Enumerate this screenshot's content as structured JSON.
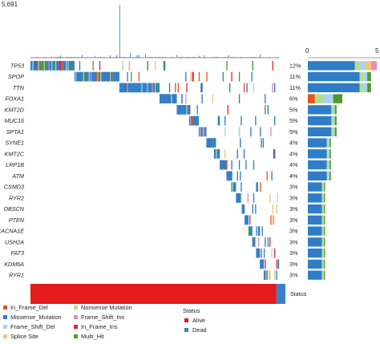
{
  "chart_data": {
    "type": "heatmap",
    "title": "",
    "top_axis": {
      "max_label": "5,691",
      "max": 5691
    },
    "right_axis": {
      "zero_label": "0",
      "partial_label": "5"
    },
    "genes": [
      {
        "name": "TP53",
        "pct": "12%",
        "freq": 12
      },
      {
        "name": "SPOP",
        "pct": "11%",
        "freq": 11
      },
      {
        "name": "TTN",
        "pct": "11%",
        "freq": 11
      },
      {
        "name": "FOXA1",
        "pct": "6%",
        "freq": 6
      },
      {
        "name": "KMT2D",
        "pct": "5%",
        "freq": 5
      },
      {
        "name": "MUC16",
        "pct": "5%",
        "freq": 5
      },
      {
        "name": "SPTA1",
        "pct": "5%",
        "freq": 5
      },
      {
        "name": "SYNE1",
        "pct": "4%",
        "freq": 4
      },
      {
        "name": "KMT2C",
        "pct": "4%",
        "freq": 4
      },
      {
        "name": "LRP1B",
        "pct": "4%",
        "freq": 4
      },
      {
        "name": "ATM",
        "pct": "4%",
        "freq": 4
      },
      {
        "name": "CSMD3",
        "pct": "3%",
        "freq": 3
      },
      {
        "name": "RYR2",
        "pct": "3%",
        "freq": 3
      },
      {
        "name": "OBSCN",
        "pct": "3%",
        "freq": 3
      },
      {
        "name": "PTEN",
        "pct": "3%",
        "freq": 3
      },
      {
        "name": "CACNA1E",
        "pct": "3%",
        "freq": 3
      },
      {
        "name": "USH2A",
        "pct": "3%",
        "freq": 3
      },
      {
        "name": "FAT3",
        "pct": "3%",
        "freq": 3
      },
      {
        "name": "KDM6A",
        "pct": "3%",
        "freq": 3
      },
      {
        "name": "RYR1",
        "pct": "3%",
        "freq": 3
      }
    ],
    "status_track": {
      "label": "Status",
      "alive_fraction": 0.965
    },
    "legend_variants_title": "",
    "variant_classes": [
      {
        "name": "In_Frame_Del",
        "color": "#e8541c"
      },
      {
        "name": "Missense_Mutation",
        "color": "#2f7dc7"
      },
      {
        "name": "Frame_Shift_Del",
        "color": "#a7d3ec"
      },
      {
        "name": "Splice Site",
        "color": "#f2c57a"
      },
      {
        "name": "Nonsense Mutation",
        "color": "#b5dc8f"
      },
      {
        "name": "Frame_Shift_Ins",
        "color": "#e98ab8"
      },
      {
        "name": "In_Frame_Ins",
        "color": "#e0262d"
      },
      {
        "name": "Multi_Hit",
        "color": "#4f9a2a"
      }
    ],
    "status_legend": {
      "title": "Status",
      "items": [
        {
          "name": "Alive",
          "color": "#e41a1c"
        },
        {
          "name": "Dead",
          "color": "#3a80c8"
        }
      ]
    },
    "grid": false
  }
}
